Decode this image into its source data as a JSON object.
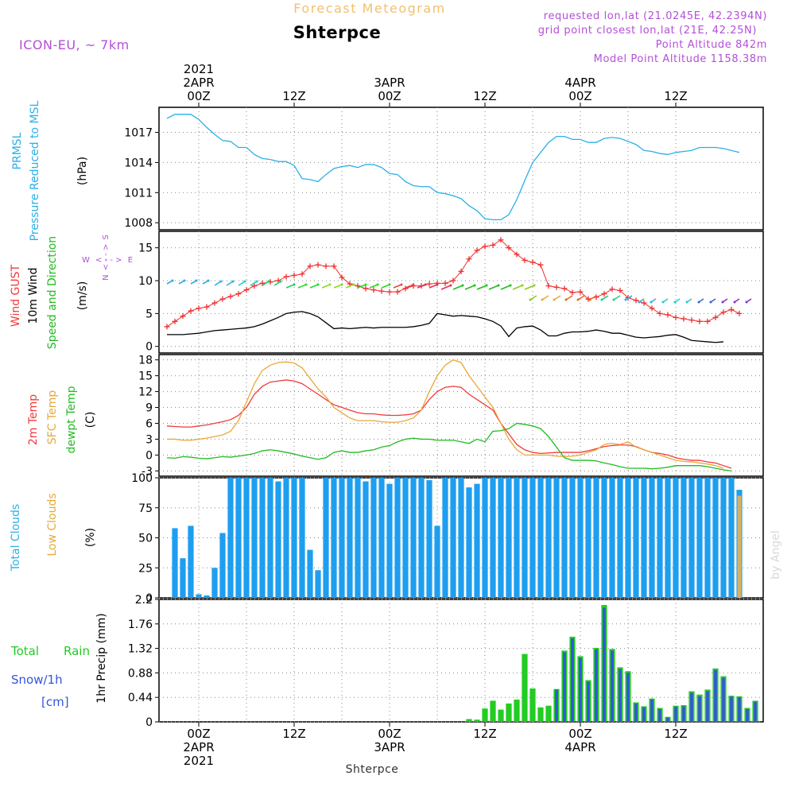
{
  "header": {
    "product": "Forecast Meteogram",
    "model": "ICON-EU, ~ 7km",
    "location": "Shterpce",
    "requested": "requested lon,lat (21.0245E, 42.2394N)",
    "grid_point": "grid point closest lon,lat (21E, 42.25N)",
    "point_altitude": "Point Altitude 842m",
    "model_altitude": "Model Point Altitude 1158.38m",
    "signature": "by Angel",
    "bottom_label": "Shterpce"
  },
  "time_axis": {
    "top_labels": [
      {
        "hour": 0,
        "lines": [
          "2021",
          "2APR",
          "00Z"
        ]
      },
      {
        "hour": 12,
        "lines": [
          "12Z"
        ]
      },
      {
        "hour": 24,
        "lines": [
          "3APR",
          "00Z"
        ]
      },
      {
        "hour": 36,
        "lines": [
          "12Z"
        ]
      },
      {
        "hour": 48,
        "lines": [
          "4APR",
          "00Z"
        ]
      },
      {
        "hour": 60,
        "lines": [
          "12Z"
        ]
      }
    ],
    "bottom_labels": [
      {
        "hour": 0,
        "lines": [
          "00Z",
          "2APR",
          "2021"
        ]
      },
      {
        "hour": 12,
        "lines": [
          "12Z"
        ]
      },
      {
        "hour": 24,
        "lines": [
          "00Z",
          "3APR"
        ]
      },
      {
        "hour": 36,
        "lines": [
          "12Z"
        ]
      },
      {
        "hour": 48,
        "lines": [
          "00Z",
          "4APR"
        ]
      },
      {
        "hour": 60,
        "lines": [
          "12Z"
        ]
      }
    ],
    "range_hours": [
      -5,
      71
    ]
  },
  "panels": {
    "pressure": {
      "label_lines": [
        "PRMSL",
        "Pressure Reduced to MSL"
      ],
      "unit": "(hPa)",
      "yticks": [
        "1017",
        "1014",
        "1011",
        "1008"
      ]
    },
    "wind": {
      "label_gust": "Wind GUST",
      "label_wind": "10m Wind",
      "label_dir": "Speed and Direction",
      "unit": "(m/s)",
      "compass_ns": [
        "N",
        "< - - >",
        "S"
      ],
      "compass_we": [
        "W",
        "< - - >",
        "E"
      ],
      "yticks": [
        "15",
        "10",
        "5",
        "0"
      ]
    },
    "temperature": {
      "label_2m": "2m Temp",
      "label_sfc": "SFC Temp",
      "label_dew": "dewpt Temp",
      "unit": "(C)",
      "yticks": [
        "18",
        "15",
        "12",
        "9",
        "6",
        "3",
        "0",
        "-3"
      ]
    },
    "clouds": {
      "label_total": "Total Clouds",
      "label_low": "Low Clouds",
      "unit": "(%)",
      "yticks": [
        "100",
        "75",
        "50",
        "25",
        "0"
      ]
    },
    "precip": {
      "label_total": "Total",
      "label_rain": "Rain",
      "label_snow": "Snow/1h",
      "label_cm": "[cm]",
      "unit": "1hr Precip (mm)",
      "yticks": [
        "2.2",
        "1.76",
        "1.32",
        "0.88",
        "0.44",
        "0"
      ]
    }
  },
  "colors": {
    "pressure": "#2ab0e8",
    "gust": "#f03030",
    "wind": "#000000",
    "t2m": "#f03a3a",
    "tsfc": "#e8a838",
    "dew": "#22bb22",
    "total_clouds": "#1e9ef0",
    "low_clouds": "#d8b060",
    "rain": "#22cc22",
    "snow": "#3355dd",
    "title": "#f2c070",
    "info": "#b34fd8",
    "label_blue": "#2ab0e8",
    "label_orange": "#e8a838",
    "label_green": "#22bb22",
    "label_red": "#f03a3a"
  },
  "chart_data": [
    {
      "type": "line",
      "title": "PRMSL Pressure Reduced to MSL",
      "ylabel": "(hPa)",
      "ylim": [
        1007.3,
        1019.5
      ],
      "x_hours_start": -4,
      "x_step_hours": 1,
      "values": [
        1018.4,
        1018.8,
        1018.8,
        1018.8,
        1018.3,
        1017.5,
        1016.8,
        1016.2,
        1016.1,
        1015.5,
        1015.5,
        1014.8,
        1014.4,
        1014.3,
        1014.1,
        1014.1,
        1013.7,
        1012.4,
        1012.3,
        1012.1,
        1012.8,
        1013.4,
        1013.6,
        1013.7,
        1013.5,
        1013.8,
        1013.8,
        1013.5,
        1012.9,
        1012.8,
        1012.1,
        1011.7,
        1011.6,
        1011.6,
        1011.0,
        1010.9,
        1010.7,
        1010.4,
        1009.7,
        1009.2,
        1008.4,
        1008.3,
        1008.3,
        1008.8,
        1010.3,
        1012.2,
        1014.0,
        1015.0,
        1016.0,
        1016.6,
        1016.6,
        1016.3,
        1016.3,
        1016.0,
        1016.0,
        1016.4,
        1016.5,
        1016.4,
        1016.1,
        1015.8,
        1015.2,
        1015.1,
        1014.9,
        1014.8,
        1015.0,
        1015.1,
        1015.2,
        1015.5,
        1015.5,
        1015.5,
        1015.4,
        1015.2,
        1015.0
      ]
    },
    {
      "type": "line",
      "title": "Wind GUST / 10m Wind Speed and Direction",
      "ylabel": "(m/s)",
      "ylim": [
        -1,
        17.5
      ],
      "x_hours_start": -4,
      "x_step_hours": 1,
      "series": [
        {
          "name": "Wind GUST",
          "values": [
            3.0,
            3.8,
            4.6,
            5.4,
            5.8,
            6.0,
            6.6,
            7.2,
            7.6,
            8.0,
            8.6,
            9.2,
            9.6,
            9.8,
            10.0,
            10.6,
            10.8,
            11.0,
            12.2,
            12.4,
            12.2,
            12.2,
            10.5,
            9.5,
            9.2,
            8.8,
            8.6,
            8.4,
            8.3,
            8.3,
            8.8,
            9.2,
            9.2,
            9.5,
            9.6,
            9.6,
            10.0,
            11.4,
            13.3,
            14.6,
            15.2,
            15.4,
            16.2,
            15.0,
            14.0,
            13.1,
            12.8,
            12.4,
            9.2,
            9.0,
            8.8,
            8.2,
            8.3,
            7.2,
            7.5,
            8.0,
            8.7,
            8.5,
            7.4,
            7.0,
            6.6,
            5.8,
            5.0,
            4.8,
            4.4,
            4.2,
            4.0,
            3.8,
            3.8,
            4.4,
            5.2,
            5.6,
            5.0
          ]
        },
        {
          "name": "10m Wind",
          "values": [
            1.8,
            1.8,
            1.8,
            1.9,
            2.0,
            2.2,
            2.4,
            2.5,
            2.6,
            2.7,
            2.8,
            3.0,
            3.4,
            3.9,
            4.4,
            5.0,
            5.2,
            5.3,
            5.0,
            4.5,
            3.6,
            2.7,
            2.8,
            2.7,
            2.8,
            2.9,
            2.8,
            2.9,
            2.9,
            2.9,
            2.9,
            3.0,
            3.2,
            3.5,
            5.0,
            4.8,
            4.6,
            4.7,
            4.6,
            4.5,
            4.2,
            3.8,
            3.1,
            1.5,
            2.8,
            3.0,
            3.1,
            2.5,
            1.6,
            1.6,
            2.0,
            2.2,
            2.2,
            2.3,
            2.5,
            2.3,
            2.0,
            2.0,
            1.7,
            1.4,
            1.3,
            1.4,
            1.5,
            1.7,
            1.8,
            1.4,
            0.9,
            0.8,
            0.7,
            0.6,
            0.7
          ]
        }
      ]
    },
    {
      "type": "line",
      "title": "2m Temp / SFC Temp / dewpt Temp",
      "ylabel": "(C)",
      "ylim": [
        -4,
        19
      ],
      "x_hours_start": -4,
      "x_step_hours": 1,
      "series": [
        {
          "name": "2m Temp",
          "values": [
            5.5,
            5.4,
            5.3,
            5.3,
            5.5,
            5.7,
            6.0,
            6.3,
            6.7,
            7.5,
            9.0,
            11.5,
            13.0,
            13.8,
            14.0,
            14.2,
            14.0,
            13.5,
            12.5,
            11.5,
            10.5,
            9.5,
            9.0,
            8.5,
            8.0,
            7.8,
            7.8,
            7.6,
            7.5,
            7.5,
            7.6,
            7.8,
            8.5,
            10.5,
            12.0,
            12.8,
            13.0,
            12.8,
            11.5,
            10.5,
            9.5,
            8.5,
            6.0,
            4.0,
            2.0,
            1.0,
            0.5,
            0.3,
            0.4,
            0.5,
            0.5,
            0.5,
            0.5,
            0.8,
            1.2,
            1.6,
            1.8,
            1.9,
            1.9,
            1.6,
            1.0,
            0.5,
            0.3,
            0.0,
            -0.5,
            -0.8,
            -1.0,
            -1.0,
            -1.3,
            -1.5,
            -2.0,
            -2.5
          ]
        },
        {
          "name": "SFC Temp",
          "values": [
            3.0,
            3.0,
            2.8,
            2.8,
            3.0,
            3.2,
            3.5,
            3.8,
            4.5,
            6.5,
            10.0,
            13.5,
            16.0,
            17.0,
            17.5,
            17.6,
            17.4,
            16.5,
            14.5,
            12.5,
            11.0,
            9.0,
            8.0,
            7.0,
            6.5,
            6.5,
            6.5,
            6.3,
            6.2,
            6.2,
            6.5,
            7.0,
            8.5,
            12.0,
            15.0,
            17.0,
            18.0,
            17.5,
            15.0,
            13.0,
            11.0,
            9.0,
            6.0,
            3.0,
            1.0,
            0.0,
            0.0,
            0.0,
            0.0,
            -0.2,
            -0.3,
            -0.2,
            0.0,
            0.5,
            1.0,
            2.0,
            2.2,
            2.0,
            2.5,
            1.5,
            1.0,
            0.5,
            0.0,
            -0.5,
            -1.0,
            -1.2,
            -1.3,
            -1.5,
            -1.7,
            -2.0,
            -2.5
          ]
        },
        {
          "name": "dewpt Temp",
          "values": [
            -0.5,
            -0.6,
            -0.3,
            -0.4,
            -0.6,
            -0.7,
            -0.5,
            -0.3,
            -0.4,
            -0.2,
            0.0,
            0.3,
            0.8,
            1.0,
            0.8,
            0.5,
            0.2,
            -0.2,
            -0.5,
            -0.8,
            -0.5,
            0.5,
            0.8,
            0.5,
            0.5,
            0.8,
            1.0,
            1.5,
            1.8,
            2.5,
            3.0,
            3.2,
            3.0,
            3.0,
            2.8,
            2.8,
            2.8,
            2.5,
            2.2,
            3.0,
            2.5,
            4.5,
            4.6,
            5.0,
            6.0,
            5.8,
            5.5,
            5.0,
            3.5,
            1.5,
            -0.5,
            -1.0,
            -1.0,
            -1.0,
            -1.1,
            -1.5,
            -1.8,
            -2.2,
            -2.5,
            -2.5,
            -2.5,
            -2.6,
            -2.5,
            -2.3,
            -2.0,
            -2.0,
            -2.0,
            -2.0,
            -2.2,
            -2.5,
            -2.8,
            -3.0
          ]
        }
      ]
    },
    {
      "type": "bar",
      "title": "Total Clouds / Low Clouds",
      "ylabel": "(%)",
      "ylim": [
        0,
        100
      ],
      "x_hours_start": -5,
      "x_step_hours": 1,
      "series": [
        {
          "name": "Total Clouds",
          "values": [
            5,
            0,
            58,
            33,
            60,
            3,
            2,
            25,
            54,
            100,
            100,
            100,
            100,
            100,
            100,
            97,
            100,
            100,
            100,
            40,
            23,
            100,
            100,
            100,
            100,
            100,
            97,
            100,
            100,
            95,
            100,
            100,
            100,
            100,
            98,
            60,
            100,
            100,
            100,
            92,
            95,
            100,
            100,
            100,
            100,
            100,
            100,
            100,
            100,
            100,
            100,
            100,
            100,
            100,
            100,
            100,
            100,
            100,
            100,
            100,
            100,
            100,
            100,
            100,
            100,
            100,
            100,
            100,
            100,
            100,
            100,
            100,
            100,
            90
          ]
        },
        {
          "name": "Low Clouds",
          "values": [
            5,
            0,
            0,
            0,
            0,
            0,
            0,
            0,
            0,
            0,
            0,
            0,
            0,
            0,
            0,
            0,
            0,
            0,
            0,
            0,
            0,
            0,
            0,
            0,
            0,
            0,
            0,
            0,
            0,
            0,
            0,
            0,
            0,
            0,
            0,
            0,
            0,
            0,
            0,
            0,
            0,
            0,
            0,
            0,
            0,
            0,
            0,
            0,
            0,
            0,
            0,
            0,
            0,
            0,
            0,
            0,
            0,
            0,
            0,
            0,
            0,
            0,
            0,
            0,
            0,
            0,
            0,
            0,
            0,
            0,
            0,
            0,
            0,
            85
          ]
        }
      ]
    },
    {
      "type": "bar",
      "title": "Total Rain / Snow/1h",
      "ylabel": "1hr Precip (mm)",
      "ylim": [
        0,
        2.2
      ],
      "x_hours_start": -5,
      "x_step_hours": 1,
      "series": [
        {
          "name": "Total Rain",
          "values": [
            0,
            0,
            0,
            0,
            0,
            0,
            0,
            0,
            0,
            0,
            0,
            0,
            0,
            0,
            0,
            0,
            0,
            0,
            0,
            0,
            0,
            0,
            0,
            0,
            0,
            0,
            0,
            0,
            0,
            0,
            0,
            0,
            0,
            0,
            0,
            0,
            0,
            0,
            0,
            0.05,
            0.04,
            0.24,
            0.38,
            0.22,
            0.33,
            0.4,
            1.22,
            0.6,
            0.26,
            0.29,
            0.59,
            1.28,
            1.53,
            1.18,
            0.75,
            1.33,
            2.1,
            1.31,
            0.98,
            0.91,
            0.35,
            0.28,
            0.42,
            0.25,
            0.09,
            0.29,
            0.3,
            0.55,
            0.49,
            0.58,
            0.96,
            0.82,
            0.47,
            0.46,
            0.25,
            0.38,
            0.32
          ]
        },
        {
          "name": "Snow/1h",
          "values": [
            0,
            0,
            0,
            0,
            0,
            0,
            0,
            0,
            0,
            0,
            0,
            0,
            0,
            0,
            0,
            0,
            0,
            0,
            0,
            0,
            0,
            0,
            0,
            0,
            0,
            0,
            0,
            0,
            0,
            0,
            0,
            0,
            0,
            0,
            0,
            0,
            0,
            0,
            0,
            0,
            0,
            0,
            0,
            0,
            0,
            0,
            0,
            0,
            0,
            0,
            0.58,
            1.25,
            1.5,
            1.15,
            0.72,
            1.3,
            2.05,
            1.28,
            0.95,
            0.88,
            0.33,
            0.26,
            0.4,
            0.23,
            0.08,
            0.27,
            0.28,
            0.52,
            0.46,
            0.55,
            0.93,
            0.79,
            0.45,
            0.44,
            0.23,
            0.36,
            0.3
          ]
        }
      ]
    }
  ]
}
